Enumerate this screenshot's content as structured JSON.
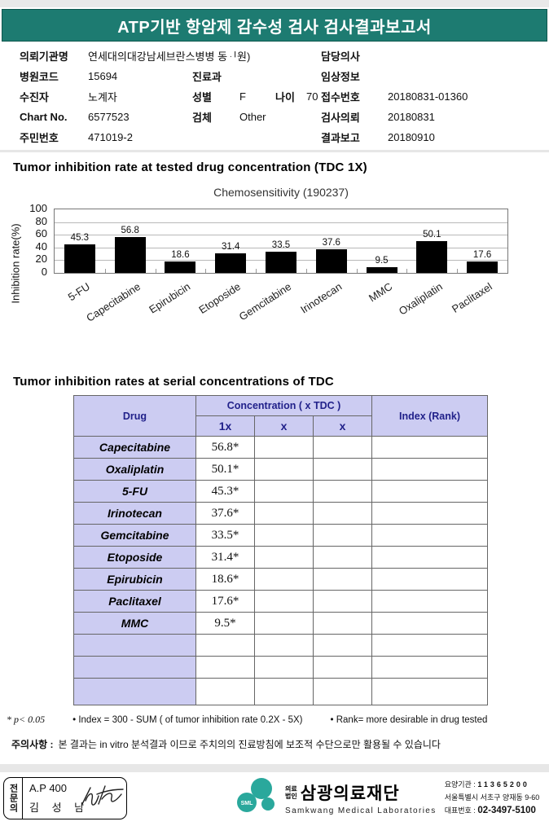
{
  "report": {
    "title": "ATP기반 항암제 감수성 검사 검사결과보고서"
  },
  "patient_info": {
    "org_label": "의뢰기관명",
    "org_value": "연세대의대강남세브란스병병 동ᆡ원)",
    "hospital_code_label": "병원코드",
    "hospital_code": "15694",
    "patient_label": "수진자",
    "patient_name": "노계자",
    "chart_no_label": "Chart No.",
    "chart_no": "6577523",
    "resident_id_label": "주민번호",
    "resident_id": "471019-2",
    "dept_label": "진료과",
    "dept": "",
    "sex_label": "성별",
    "sex": "F",
    "age_label": "나이",
    "age": "70",
    "specimen_label": "검체",
    "specimen": "Other",
    "doctor_label": "담당의사",
    "doctor": "",
    "clinical_label": "임상정보",
    "clinical": "",
    "receipt_label": "접수번호",
    "receipt_no": "20180831-01360",
    "request_label": "검사의뢰",
    "request_date": "20180831",
    "report_label": "결과보고",
    "report_date": "20180910"
  },
  "section1_title": "Tumor inhibition rate at tested drug concentration (TDC 1X)",
  "chart_data": {
    "type": "bar",
    "title": "Chemosensitivity (190237)",
    "categories": [
      "5-FU",
      "Capecitabine",
      "Epirubicin",
      "Etoposide",
      "Gemcitabine",
      "Irinotecan",
      "MMC",
      "Oxaliplatin",
      "Paclitaxel"
    ],
    "values": [
      45.3,
      56.8,
      18.6,
      31.4,
      33.5,
      37.6,
      9.5,
      50.1,
      17.6
    ],
    "xlabel": "",
    "ylabel": "Inhibition rate(%)",
    "ylim": [
      0,
      100
    ],
    "yticks": [
      0,
      20,
      40,
      60,
      80,
      100
    ],
    "grid": true,
    "legend": false,
    "bar_color": "#000000"
  },
  "section2_title": "Tumor inhibition rates at serial concentrations of TDC",
  "table": {
    "header": {
      "drug": "Drug",
      "concentration": "Concentration ( x TDC )",
      "col_1x": "1x",
      "col_x2": "x",
      "col_x3": "x",
      "index": "Index (Rank)"
    },
    "rows": [
      {
        "drug": "Capecitabine",
        "v1x": "56.8*",
        "vx2": "",
        "vx3": "",
        "index": ""
      },
      {
        "drug": "Oxaliplatin",
        "v1x": "50.1*",
        "vx2": "",
        "vx3": "",
        "index": ""
      },
      {
        "drug": "5-FU",
        "v1x": "45.3*",
        "vx2": "",
        "vx3": "",
        "index": ""
      },
      {
        "drug": "Irinotecan",
        "v1x": "37.6*",
        "vx2": "",
        "vx3": "",
        "index": ""
      },
      {
        "drug": "Gemcitabine",
        "v1x": "33.5*",
        "vx2": "",
        "vx3": "",
        "index": ""
      },
      {
        "drug": "Etoposide",
        "v1x": "31.4*",
        "vx2": "",
        "vx3": "",
        "index": ""
      },
      {
        "drug": "Epirubicin",
        "v1x": "18.6*",
        "vx2": "",
        "vx3": "",
        "index": ""
      },
      {
        "drug": "Paclitaxel",
        "v1x": "17.6*",
        "vx2": "",
        "vx3": "",
        "index": ""
      },
      {
        "drug": "MMC",
        "v1x": "9.5*",
        "vx2": "",
        "vx3": "",
        "index": ""
      },
      {
        "drug": "",
        "v1x": "",
        "vx2": "",
        "vx3": "",
        "index": ""
      },
      {
        "drug": "",
        "v1x": "",
        "vx2": "",
        "vx3": "",
        "index": ""
      },
      {
        "drug": "",
        "v1x": "",
        "vx2": "",
        "vx3": "",
        "index": ""
      }
    ]
  },
  "footnotes": {
    "p_note": "* p< 0.05",
    "index_note": "• Index = 300 - SUM ( of tumor inhibition rate 0.2X  -  5X)",
    "rank_note": "• Rank= more desirable in drug tested"
  },
  "caution": {
    "label": "주의사항 :",
    "text": "본 결과는 in vitro 분석결과 이므로 주치의의 진료방침에 보조적 수단으로만 활용될 수 있습니다"
  },
  "footer": {
    "specialist_label": "전문의",
    "credential": "A.P 400",
    "doctor_name": "김 성 남",
    "logo_sml": "SML",
    "org_type_line1": "의료",
    "org_type_line2": "법인",
    "org_name": "삼광의료재단",
    "org_name_en": "Samkwang Medical Laboratories",
    "care_org_label": "요양기관 :",
    "care_org_value": "11365200",
    "address": "서울특별시 서초구 양재동 9-60",
    "phone_label": "대표번호 :",
    "phone_value": "02-3497-5100",
    "logo_color": "#2aa89c"
  },
  "colors": {
    "header_teal": "#1d7b71",
    "table_header_bg": "#ccccf2",
    "table_header_text": "#21218a",
    "bar_black": "#000000"
  }
}
